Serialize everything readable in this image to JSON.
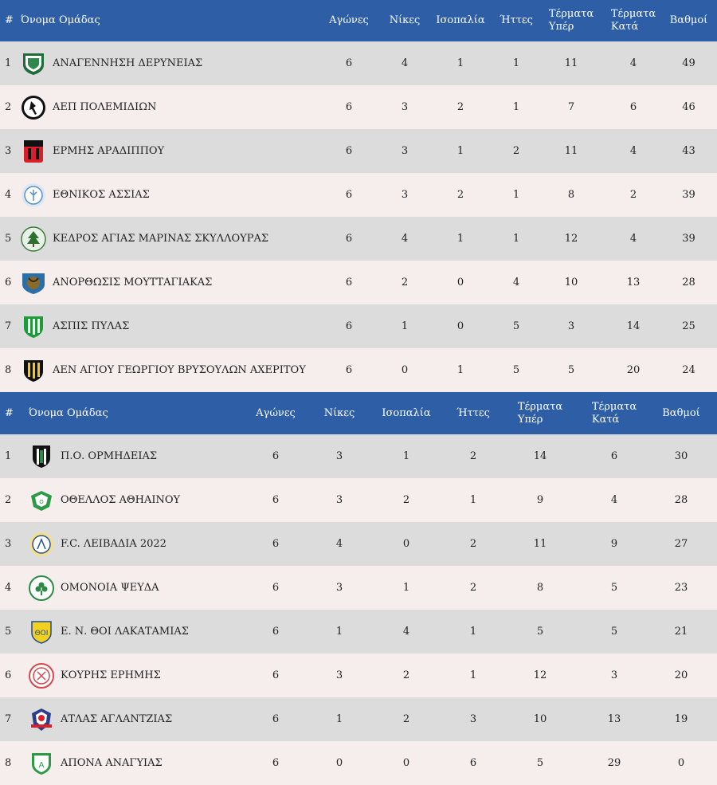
{
  "headers": {
    "pos": "#",
    "team": "Όνομα Ομάδας",
    "played": "Αγώνες",
    "wins": "Νίκες",
    "draws": "Ισοπαλία",
    "losses": "Ήττες",
    "gf_line1": "Τέρματα",
    "gf_line2": "Υπέρ",
    "ga_line1": "Τέρματα",
    "ga_line2": "Κατά",
    "points": "Βαθμοί"
  },
  "colors": {
    "header_bg": "#2d5ea6",
    "row_odd": "#dcdcdc",
    "row_even": "#f6eded"
  },
  "table1": [
    {
      "pos": "1",
      "team": "ΑΝΑΓΕΝΝΗΣΗ ΔΕΡΥΝΕΙΑΣ",
      "logo": "anagennisi-crest-icon",
      "played": "6",
      "wins": "4",
      "draws": "1",
      "losses": "1",
      "gf": "11",
      "ga": "4",
      "points": "49"
    },
    {
      "pos": "2",
      "team": "ΑΕΠ ΠΟΛΕΜΙΔΙΩΝ",
      "logo": "aep-crest-icon",
      "played": "6",
      "wins": "3",
      "draws": "2",
      "losses": "1",
      "gf": "7",
      "ga": "6",
      "points": "46"
    },
    {
      "pos": "3",
      "team": "ΕΡΜΗΣ ΑΡΑΔΙΠΠΟΥ",
      "logo": "ermis-crest-icon",
      "played": "6",
      "wins": "3",
      "draws": "1",
      "losses": "2",
      "gf": "11",
      "ga": "4",
      "points": "43"
    },
    {
      "pos": "4",
      "team": "ΕΘΝΙΚΟΣ ΑΣΣΙΑΣ",
      "logo": "ethnikos-crest-icon",
      "played": "6",
      "wins": "3",
      "draws": "2",
      "losses": "1",
      "gf": "8",
      "ga": "2",
      "points": "39"
    },
    {
      "pos": "5",
      "team": "ΚΕΔΡΟΣ ΑΓΙΑΣ ΜΑΡΙΝΑΣ ΣΚΥΛΛΟΥΡΑΣ",
      "logo": "kedros-crest-icon",
      "played": "6",
      "wins": "4",
      "draws": "1",
      "losses": "1",
      "gf": "12",
      "ga": "4",
      "points": "39"
    },
    {
      "pos": "6",
      "team": "ΑΝΟΡΘΩΣΙΣ ΜΟΥΤΤΑΓΙΑΚΑΣ",
      "logo": "anorthosis-crest-icon",
      "played": "6",
      "wins": "2",
      "draws": "0",
      "losses": "4",
      "gf": "10",
      "ga": "13",
      "points": "28"
    },
    {
      "pos": "7",
      "team": "ΑΣΠΙΣ ΠΥΛΑΣ",
      "logo": "aspis-crest-icon",
      "played": "6",
      "wins": "1",
      "draws": "0",
      "losses": "5",
      "gf": "3",
      "ga": "14",
      "points": "25"
    },
    {
      "pos": "8",
      "team": "ΑΕΝ ΑΓΙΟΥ ΓΕΩΡΓΙΟΥ ΒΡΥΣΟΥΛΩΝ ΑΧΕΡΙΤΟΥ",
      "logo": "aen-crest-icon",
      "played": "6",
      "wins": "0",
      "draws": "1",
      "losses": "5",
      "gf": "5",
      "ga": "20",
      "points": "24"
    }
  ],
  "table2": [
    {
      "pos": "1",
      "team": "Π.Ο. ΟΡΜΗΔΕΙΑΣ",
      "logo": "ormideia-crest-icon",
      "played": "6",
      "wins": "3",
      "draws": "1",
      "losses": "2",
      "gf": "14",
      "ga": "6",
      "points": "30"
    },
    {
      "pos": "2",
      "team": "ΟΘΕΛΛΟΣ ΑΘΗΑΙΝΟΥ",
      "logo": "othellos-crest-icon",
      "played": "6",
      "wins": "3",
      "draws": "2",
      "losses": "1",
      "gf": "9",
      "ga": "4",
      "points": "28"
    },
    {
      "pos": "3",
      "team": "F.C. ΛΕΙΒΑΔΙΑ 2022",
      "logo": "livadia-crest-icon",
      "played": "6",
      "wins": "4",
      "draws": "0",
      "losses": "2",
      "gf": "11",
      "ga": "9",
      "points": "27"
    },
    {
      "pos": "4",
      "team": "ΟΜΟΝΟΙΑ ΨΕΥΔΑ",
      "logo": "omonoia-crest-icon",
      "played": "6",
      "wins": "3",
      "draws": "1",
      "losses": "2",
      "gf": "8",
      "ga": "5",
      "points": "23"
    },
    {
      "pos": "5",
      "team": "Ε. Ν. ΘΟΙ ΛΑΚΑΤΑΜΙΑΣ",
      "logo": "thoi-crest-icon",
      "played": "6",
      "wins": "1",
      "draws": "4",
      "losses": "1",
      "gf": "5",
      "ga": "5",
      "points": "21"
    },
    {
      "pos": "6",
      "team": "ΚΟΥΡΗΣ ΕΡΗΜΗΣ",
      "logo": "kouris-crest-icon",
      "played": "6",
      "wins": "3",
      "draws": "2",
      "losses": "1",
      "gf": "12",
      "ga": "3",
      "points": "20"
    },
    {
      "pos": "7",
      "team": "ΑΤΛΑΣ ΑΓΛΑΝΤΖΙΑΣ",
      "logo": "atlas-crest-icon",
      "played": "6",
      "wins": "1",
      "draws": "2",
      "losses": "3",
      "gf": "10",
      "ga": "13",
      "points": "19"
    },
    {
      "pos": "8",
      "team": "ΑΠΟΝΑ ΑΝΑΓΥΙΑΣ",
      "logo": "apona-crest-icon",
      "played": "6",
      "wins": "0",
      "draws": "0",
      "losses": "6",
      "gf": "5",
      "ga": "29",
      "points": "0"
    }
  ]
}
